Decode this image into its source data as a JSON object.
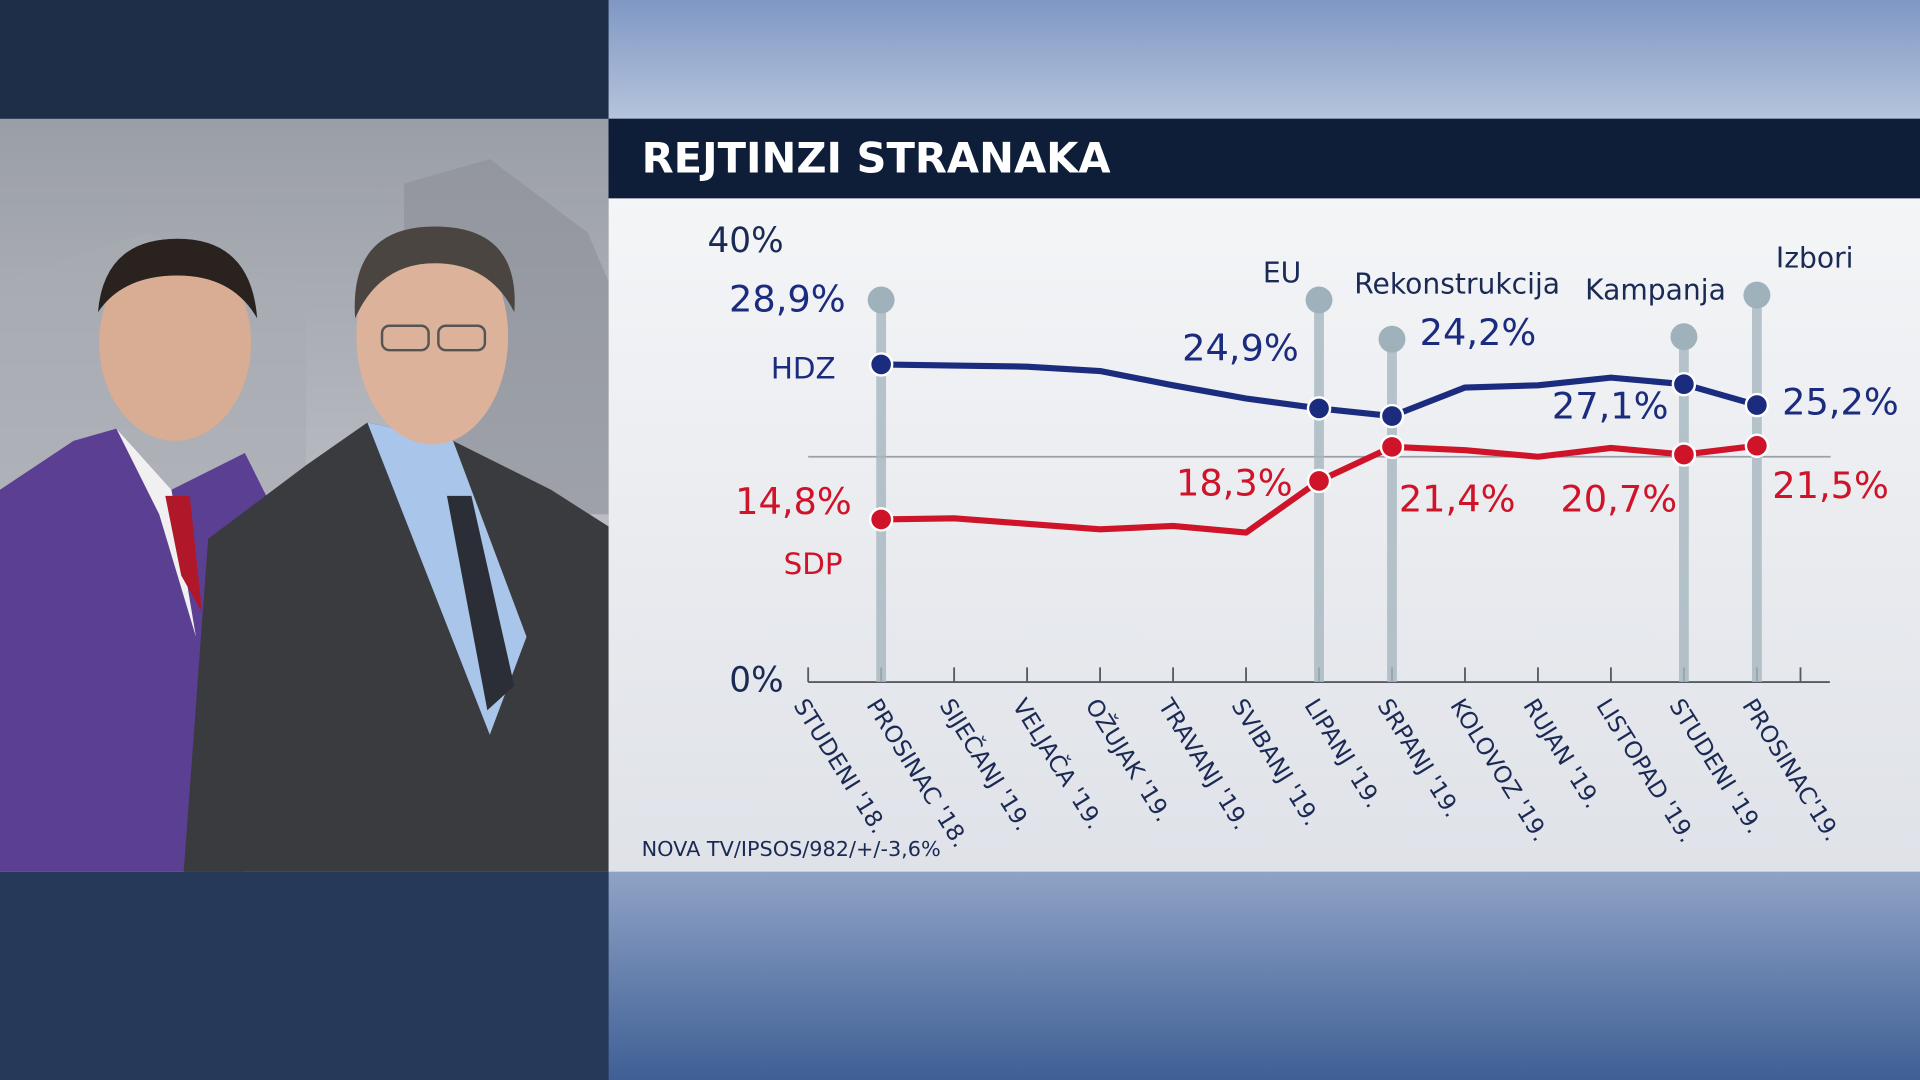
{
  "chart_data": {
    "type": "line",
    "title": "REJTINZI STRANAKA",
    "source": "NOVA TV/IPSOS/982/+/-3,6%",
    "categories": [
      "STUDENI '18.",
      "PROSINAC '18.",
      "SIJEČANJ '19.",
      "VELJAČA '19.",
      "OŽUJAK '19.",
      "TRAVANJ '19.",
      "SVIBANJ '19.",
      "LIPANJ '19.",
      "SRPANJ '19.",
      "KOLOVOZ '19.",
      "RUJAN '19.",
      "LISTOPAD '19.",
      "STUDENI '19.",
      "PROSINAC'19."
    ],
    "series": [
      {
        "name": "HDZ",
        "color": "#1b2c7f",
        "values": [
          null,
          28.9,
          28.8,
          28.7,
          28.3,
          27.0,
          25.8,
          24.9,
          24.2,
          26.8,
          27.0,
          27.7,
          27.1,
          25.2
        ],
        "value_labels": [
          null,
          "28,9%",
          null,
          null,
          null,
          null,
          null,
          "24,9%",
          "24,2%",
          null,
          null,
          null,
          "27,1%",
          "25,2%"
        ]
      },
      {
        "name": "SDP",
        "color": "#cf1329",
        "values": [
          null,
          14.8,
          14.9,
          14.4,
          13.9,
          14.2,
          13.6,
          18.3,
          21.4,
          21.1,
          20.5,
          21.3,
          20.7,
          21.5
        ],
        "value_labels": [
          null,
          "14,8%",
          null,
          null,
          null,
          null,
          null,
          "18,3%",
          "21,4%",
          null,
          null,
          null,
          "20,7%",
          "21,5%"
        ]
      }
    ],
    "annotations": [
      {
        "text": "EU",
        "x": "LIPANJ '19."
      },
      {
        "text": "Rekonstrukcija",
        "x": "SRPANJ '19."
      },
      {
        "text": "Kampanja",
        "x": "STUDENI '19."
      },
      {
        "text": "Izbori",
        "x": "PROSINAC'19."
      }
    ],
    "ylim": [
      0,
      40
    ],
    "yticks": [
      {
        "value": 0,
        "label": "0%"
      },
      {
        "value": 40,
        "label": "40%"
      }
    ]
  }
}
